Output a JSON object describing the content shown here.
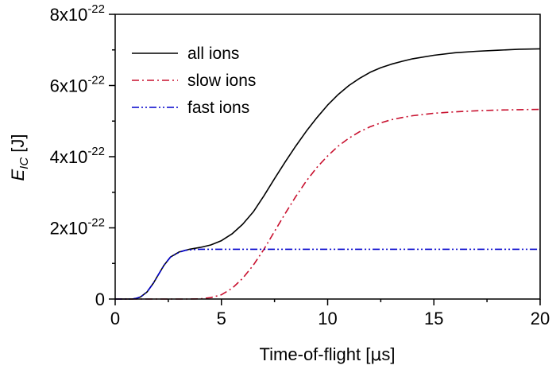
{
  "chart_data": {
    "type": "line",
    "xlabel": {
      "main": "Time-of-flight [",
      "mu": "μ",
      "unit": "s]"
    },
    "ylabel": {
      "main": "E",
      "sub": "IC",
      "unit": " [J]"
    },
    "xlim": [
      0,
      20
    ],
    "ylim": [
      0,
      8e-22
    ],
    "x_ticks": [
      {
        "value": 0,
        "label": "0"
      },
      {
        "value": 5,
        "label": "5"
      },
      {
        "value": 10,
        "label": "10"
      },
      {
        "value": 15,
        "label": "15"
      },
      {
        "value": 20,
        "label": "20"
      }
    ],
    "y_ticks": [
      {
        "value": 0,
        "label": "0",
        "mantissa": "",
        "exp": ""
      },
      {
        "value": 2e-22,
        "label": "",
        "mantissa": "2x10",
        "exp": "-22"
      },
      {
        "value": 4e-22,
        "label": "",
        "mantissa": "4x10",
        "exp": "-22"
      },
      {
        "value": 6e-22,
        "label": "",
        "mantissa": "6x10",
        "exp": "-22"
      },
      {
        "value": 8e-22,
        "label": "",
        "mantissa": "8x10",
        "exp": "-22"
      }
    ],
    "x_minor_step": 2.5,
    "y_minor_step": 1e-22,
    "grid": false,
    "legend_position": "top-left",
    "series": [
      {
        "name": "all ions",
        "color": "#000000",
        "dash": "solid",
        "x": [
          0,
          0.8,
          1.0,
          1.2,
          1.5,
          1.8,
          2.0,
          2.3,
          2.6,
          3.0,
          3.5,
          4.0,
          4.5,
          5.0,
          5.5,
          6.0,
          6.5,
          7.0,
          7.5,
          8.0,
          8.5,
          9.0,
          9.5,
          10.0,
          10.5,
          11.0,
          11.5,
          12.0,
          12.5,
          13.0,
          13.5,
          14.0,
          15.0,
          16.0,
          17.0,
          18.0,
          19.0,
          20.0
        ],
        "y": [
          0,
          0,
          2e-24,
          6e-24,
          2e-23,
          4.5e-23,
          6.5e-23,
          9.5e-23,
          1.18e-22,
          1.32e-22,
          1.4e-22,
          1.45e-22,
          1.52e-22,
          1.64e-22,
          1.83e-22,
          2.1e-22,
          2.45e-22,
          2.9e-22,
          3.38e-22,
          3.85e-22,
          4.3e-22,
          4.72e-22,
          5.1e-22,
          5.45e-22,
          5.75e-22,
          6e-22,
          6.2e-22,
          6.37e-22,
          6.5e-22,
          6.6e-22,
          6.68e-22,
          6.75e-22,
          6.85e-22,
          6.92e-22,
          6.96e-22,
          6.99e-22,
          7.02e-22,
          7.03e-22
        ]
      },
      {
        "name": "slow ions",
        "color": "#c8102e",
        "dash": "dash-dot",
        "x": [
          0,
          3.5,
          4.0,
          4.5,
          5.0,
          5.5,
          6.0,
          6.5,
          7.0,
          7.5,
          8.0,
          8.5,
          9.0,
          9.5,
          10.0,
          10.5,
          11.0,
          11.5,
          12.0,
          12.5,
          13.0,
          13.5,
          14.0,
          15.0,
          16.0,
          17.0,
          18.0,
          19.0,
          20.0
        ],
        "y": [
          0,
          0,
          5e-25,
          4e-24,
          1.2e-23,
          3e-23,
          5.8e-23,
          9.5e-23,
          1.4e-22,
          1.9e-22,
          2.4e-22,
          2.88e-22,
          3.32e-22,
          3.7e-22,
          4.02e-22,
          4.3e-22,
          4.52e-22,
          4.7e-22,
          4.84e-22,
          4.95e-22,
          5.04e-22,
          5.1e-22,
          5.15e-22,
          5.22e-22,
          5.26e-22,
          5.29e-22,
          5.31e-22,
          5.32e-22,
          5.33e-22
        ]
      },
      {
        "name": "fast ions",
        "color": "#0000cc",
        "dash": "dash-dot-dot",
        "x": [
          0,
          0.8,
          1.0,
          1.2,
          1.5,
          1.8,
          2.0,
          2.3,
          2.6,
          3.0,
          3.3,
          3.7,
          4.0,
          5.0,
          10.0,
          15.0,
          20.0
        ],
        "y": [
          0,
          0,
          2e-24,
          6e-24,
          2e-23,
          4.5e-23,
          6.5e-23,
          9.5e-23,
          1.18e-22,
          1.31e-22,
          1.37e-22,
          1.39e-22,
          1.4e-22,
          1.4e-22,
          1.4e-22,
          1.4e-22,
          1.4e-22
        ]
      }
    ]
  }
}
